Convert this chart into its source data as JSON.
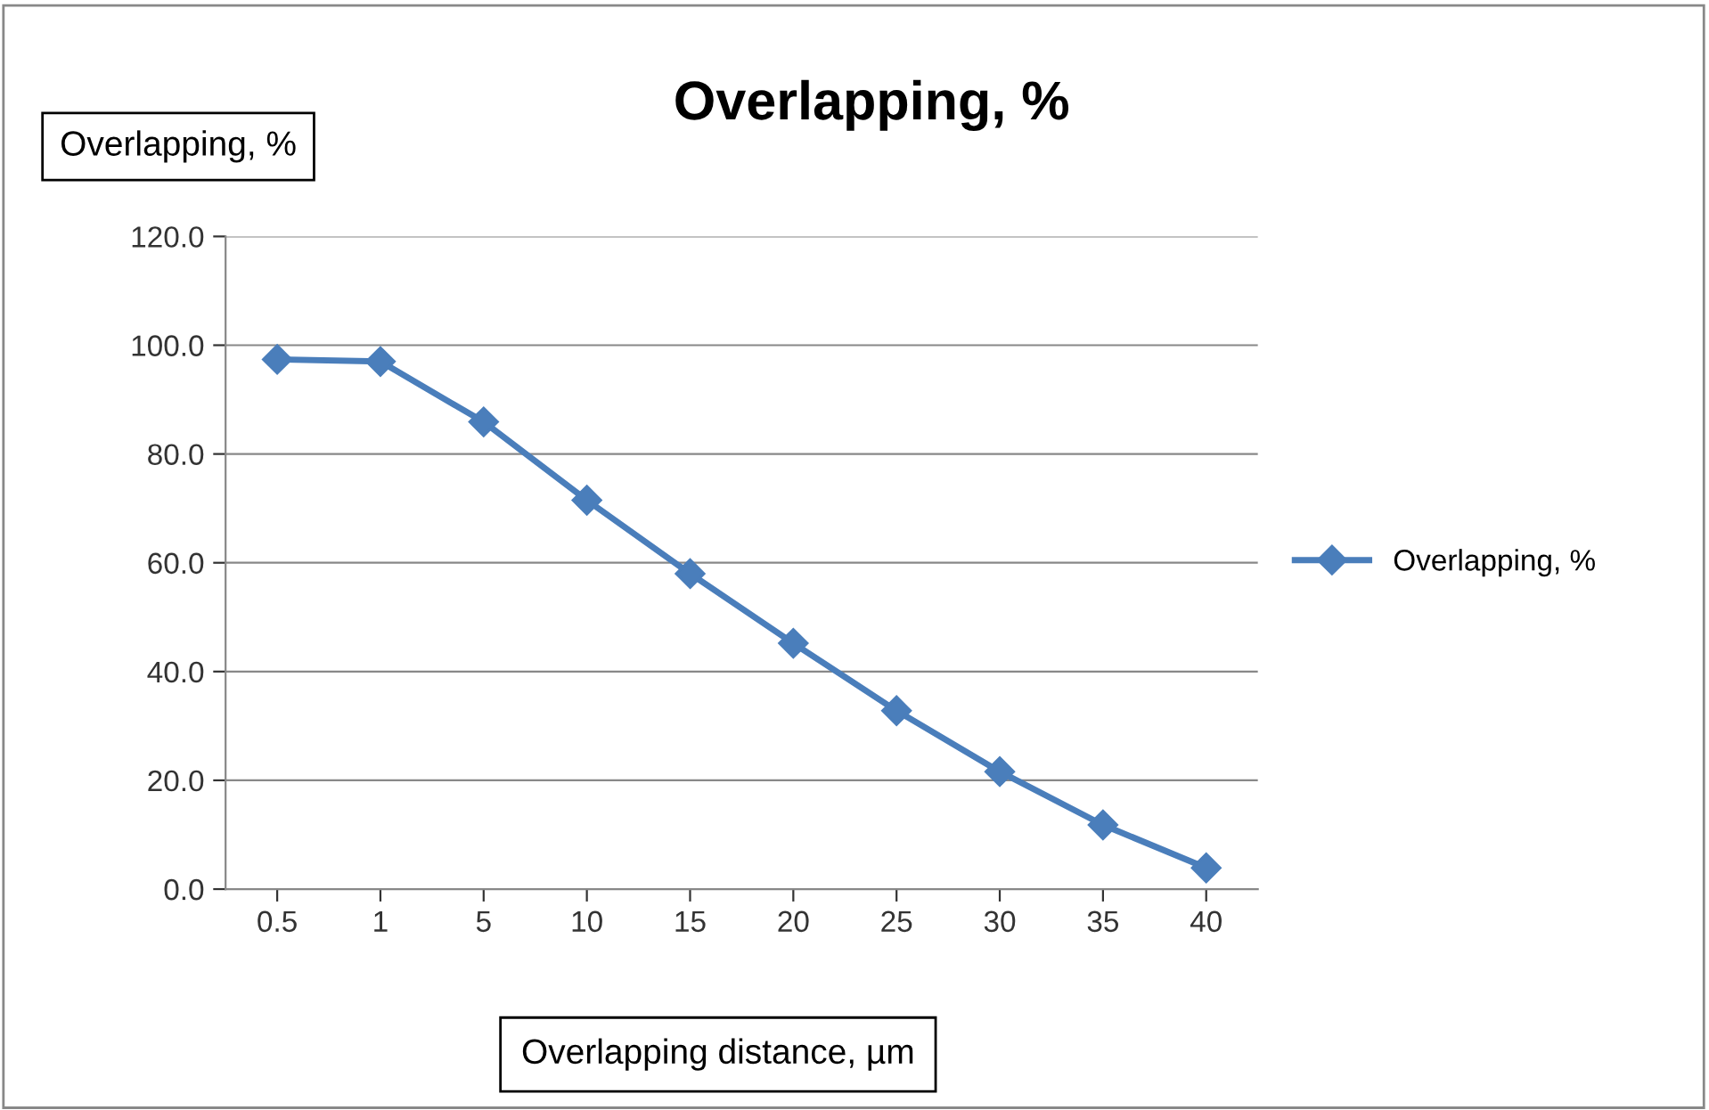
{
  "chart_data": {
    "type": "line",
    "title": "Overlapping, %",
    "ylabel": "Overlapping, %",
    "xlabel": "Overlapping distance, µm",
    "categories": [
      "0.5",
      "1",
      "5",
      "10",
      "15",
      "20",
      "25",
      "30",
      "35",
      "40"
    ],
    "series": [
      {
        "name": "Overlapping, %",
        "color": "#4a7ebb",
        "values": [
          97.4,
          97.0,
          85.9,
          71.5,
          58.0,
          45.2,
          32.8,
          21.6,
          11.8,
          3.9
        ]
      }
    ],
    "ylim": [
      0,
      120
    ],
    "yticks": [
      {
        "value": 0,
        "label": "0.0"
      },
      {
        "value": 20,
        "label": "20.0"
      },
      {
        "value": 40,
        "label": "40.0"
      },
      {
        "value": 60,
        "label": "60.0"
      },
      {
        "value": 80,
        "label": "80.0"
      },
      {
        "value": 100,
        "label": "100.0"
      },
      {
        "value": 120,
        "label": "120.0"
      }
    ],
    "grid": "y",
    "legend": "right",
    "marker": "diamond",
    "line_style": "solid"
  }
}
